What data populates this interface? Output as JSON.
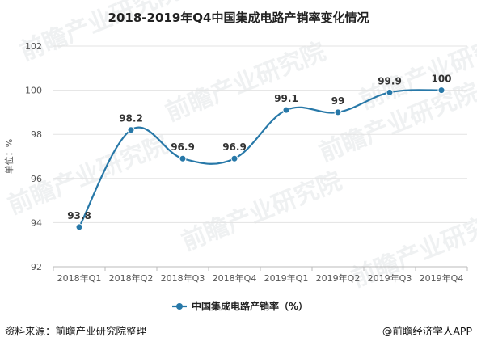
{
  "chart_data": {
    "type": "line",
    "title": "2018-2019年Q4中国集成电路产销率变化情况",
    "ylabel": "单位：%",
    "xlabel": "",
    "categories": [
      "2018年Q1",
      "2018年Q2",
      "2018年Q3",
      "2018年Q4",
      "2019年Q1",
      "2019年Q2",
      "2019年Q3",
      "2019年Q4"
    ],
    "series": [
      {
        "name": "中国集成电路产销率（%）",
        "values": [
          93.8,
          98.2,
          96.9,
          96.9,
          99.1,
          99,
          99.9,
          100
        ],
        "labels": [
          "93.8",
          "98.2",
          "96.9",
          "96.9",
          "99.1",
          "99",
          "99.9",
          "100"
        ],
        "color": "#2778a8"
      }
    ],
    "ylim": [
      92,
      102
    ],
    "yticks": [
      92,
      94,
      96,
      98,
      100,
      102
    ],
    "grid": true,
    "smooth": true,
    "legend_position": "bottom"
  },
  "footer": {
    "source": "资料来源：前瞻产业研究院整理",
    "brand": "@前瞻经济学人APP"
  },
  "watermark": {
    "text": "前瞻产业研究院"
  },
  "colors": {
    "line": "#2778a8",
    "grid": "#e3e3e3",
    "axis": "#bbbbbb"
  }
}
